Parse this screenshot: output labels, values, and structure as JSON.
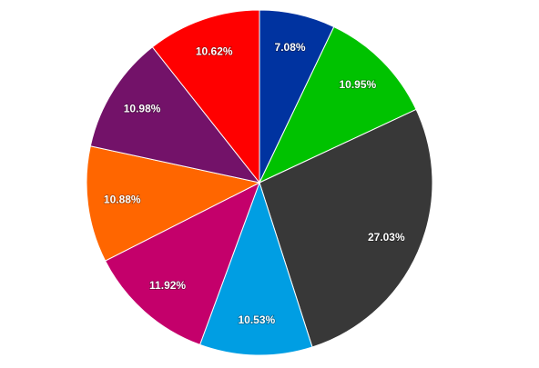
{
  "chart_data": {
    "type": "pie",
    "values": [
      7.08,
      10.95,
      27.03,
      10.53,
      11.92,
      10.88,
      10.98,
      10.62
    ],
    "value_labels": [
      "7.08%",
      "10.95%",
      "27.03%",
      "10.53%",
      "11.92%",
      "10.88%",
      "10.98%",
      "10.62%"
    ],
    "colors": [
      "#0033a0",
      "#00c200",
      "#383838",
      "#009ee3",
      "#c4006b",
      "#ff6600",
      "#731269",
      "#ff0000"
    ]
  }
}
